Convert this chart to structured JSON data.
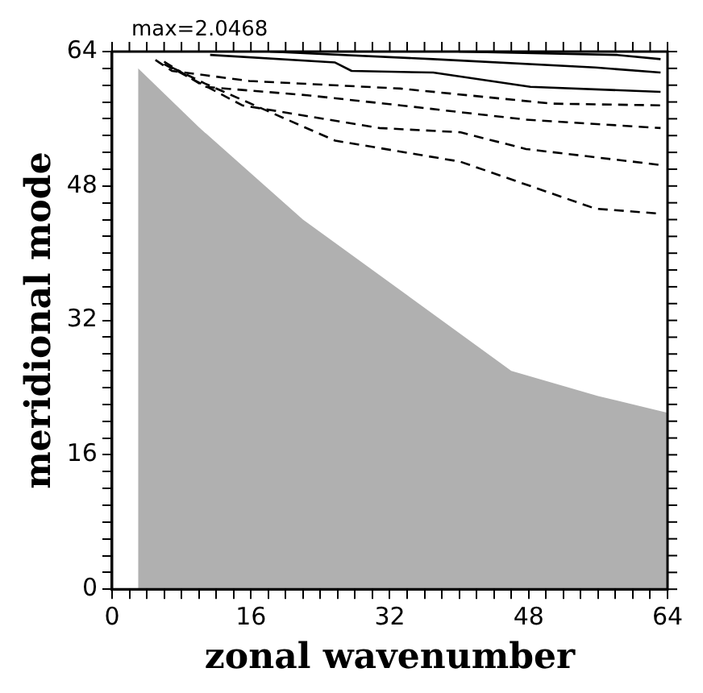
{
  "chart_data": {
    "type": "line",
    "xlabel": "zonal wavenumber",
    "ylabel": "meridional mode",
    "annotations": [
      "max=2.0468"
    ],
    "xlim": [
      0,
      64
    ],
    "ylim": [
      0,
      64
    ],
    "xticks": [
      0,
      {
        "value": 2,
        "label": null
      },
      {
        "value": 4,
        "label": null
      },
      {
        "value": 6,
        "label": null
      },
      {
        "value": 8,
        "label": null
      },
      {
        "value": 10,
        "label": null
      },
      {
        "value": 12,
        "label": null
      },
      {
        "value": 14,
        "label": null
      },
      16,
      {
        "value": 18,
        "label": null
      },
      {
        "value": 20,
        "label": null
      },
      {
        "value": 22,
        "label": null
      },
      {
        "value": 24,
        "label": null
      },
      {
        "value": 26,
        "label": null
      },
      {
        "value": 28,
        "label": null
      },
      {
        "value": 30,
        "label": null
      },
      32,
      {
        "value": 34,
        "label": null
      },
      {
        "value": 36,
        "label": null
      },
      {
        "value": 38,
        "label": null
      },
      {
        "value": 40,
        "label": null
      },
      {
        "value": 42,
        "label": null
      },
      {
        "value": 44,
        "label": null
      },
      {
        "value": 46,
        "label": null
      },
      48,
      {
        "value": 50,
        "label": null
      },
      {
        "value": 52,
        "label": null
      },
      {
        "value": 54,
        "label": null
      },
      {
        "value": 56,
        "label": null
      },
      {
        "value": 58,
        "label": null
      },
      {
        "value": 60,
        "label": null
      },
      {
        "value": 62,
        "label": null
      },
      64
    ],
    "yticks": [
      0,
      {
        "value": 2,
        "label": null
      },
      {
        "value": 4,
        "label": null
      },
      {
        "value": 6,
        "label": null
      },
      {
        "value": 8,
        "label": null
      },
      {
        "value": 10,
        "label": null
      },
      {
        "value": 12,
        "label": null
      },
      {
        "value": 14,
        "label": null
      },
      16,
      {
        "value": 18,
        "label": null
      },
      {
        "value": 20,
        "label": null
      },
      {
        "value": 22,
        "label": null
      },
      {
        "value": 24,
        "label": null
      },
      {
        "value": 26,
        "label": null
      },
      {
        "value": 28,
        "label": null
      },
      {
        "value": 30,
        "label": null
      },
      32,
      {
        "value": 34,
        "label": null
      },
      {
        "value": 36,
        "label": null
      },
      {
        "value": 38,
        "label": null
      },
      {
        "value": 40,
        "label": null
      },
      {
        "value": 42,
        "label": null
      },
      {
        "value": 44,
        "label": null
      },
      {
        "value": 46,
        "label": null
      },
      48,
      {
        "value": 50,
        "label": null
      },
      {
        "value": 52,
        "label": null
      },
      {
        "value": 54,
        "label": null
      },
      {
        "value": 56,
        "label": null
      },
      {
        "value": 58,
        "label": null
      },
      {
        "value": 60,
        "label": null
      },
      {
        "value": 62,
        "label": null
      },
      64
    ],
    "marker": "none",
    "series": [
      {
        "type": "area",
        "color": "#b0b0b0",
        "x": [
          3,
          10,
          22,
          34,
          46,
          56,
          64
        ],
        "values": [
          62,
          55,
          44,
          35,
          26,
          23,
          21
        ]
      },
      {
        "color": "#000000",
        "line_style": "dashed",
        "x": [
          6.9,
          10.7,
          25.7,
          40.1,
          55.7,
          63.2
        ],
        "values": [
          62.1,
          60.2,
          53.4,
          50.9,
          45.3,
          44.7
        ]
      },
      {
        "color": "#000000",
        "line_style": "dashed",
        "x": [
          6,
          15,
          30.8,
          40.1,
          47.7,
          63.2
        ],
        "values": [
          62.5,
          57.6,
          54.9,
          54.4,
          52.4,
          50.5
        ]
      },
      {
        "color": "#000000",
        "line_style": "dashed",
        "x": [
          6,
          10.7,
          22.5,
          33.2,
          47.7,
          63.2
        ],
        "values": [
          62.8,
          59.8,
          58.8,
          57.6,
          55.9,
          54.9
        ]
      },
      {
        "color": "#000000",
        "line_style": "dashed",
        "x": [
          5,
          6.9,
          15.8,
          33.2,
          50.7,
          63.2
        ],
        "values": [
          63,
          61.7,
          60.5,
          59.6,
          57.8,
          57.6
        ]
      },
      {
        "color": "#000000",
        "line_style": "solid",
        "x": [
          11.3,
          25.7,
          27.6,
          37,
          48.2,
          63.2
        ],
        "values": [
          63.6,
          62.7,
          61.7,
          61.5,
          59.8,
          59.2
        ]
      },
      {
        "color": "#000000",
        "line_style": "solid",
        "x": [
          18.2,
          37,
          55.7,
          63.2
        ],
        "values": [
          64,
          63.1,
          62.1,
          61.5
        ]
      },
      {
        "color": "#000000",
        "line_style": "solid",
        "x": [
          40,
          58.2,
          63.2
        ],
        "values": [
          64,
          63.6,
          63.1
        ]
      }
    ]
  }
}
